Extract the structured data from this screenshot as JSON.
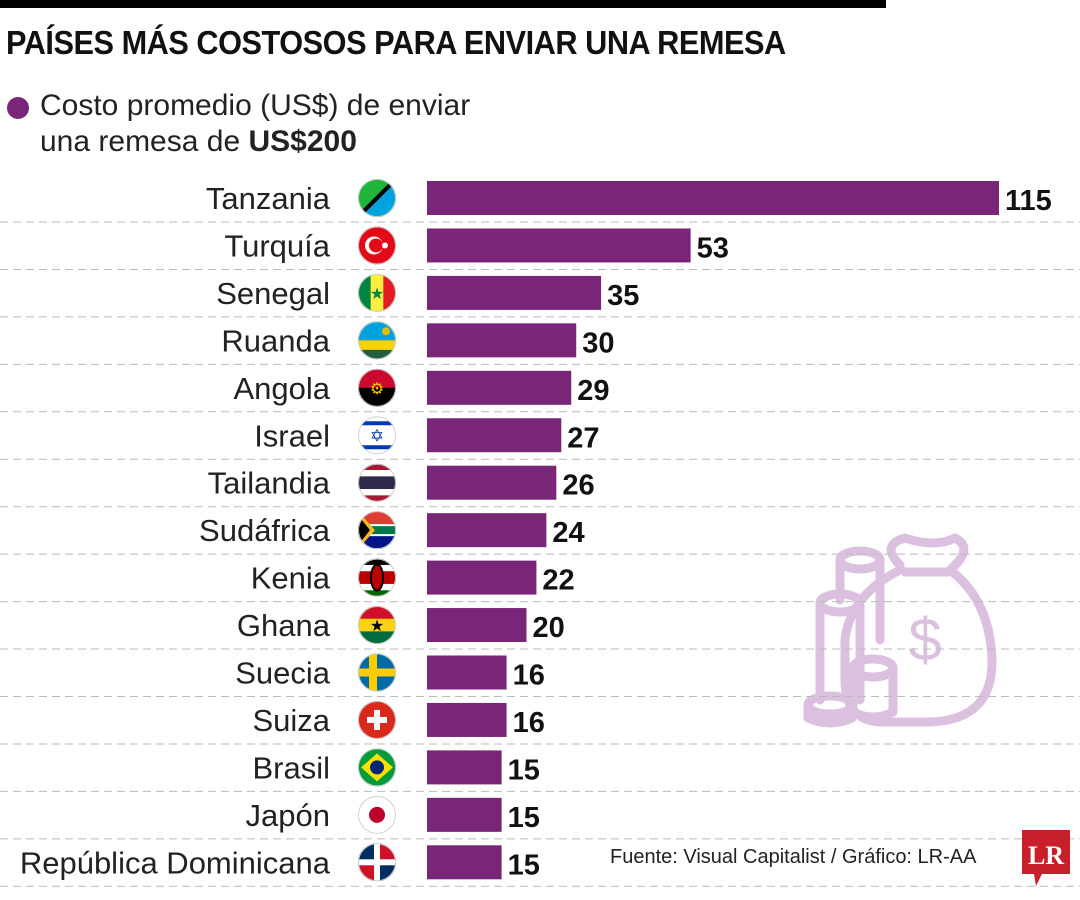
{
  "title": "PAÍSES MÁS COSTOSOS PARA ENVIAR UNA REMESA",
  "legend": {
    "text_line1": "Costo promedio (US$) de enviar",
    "text_line2_prefix": "una remesa de ",
    "text_line2_bold": "US$200",
    "color": "#7a2678"
  },
  "source": "Fuente: Visual Capitalist / Gráfico: LR-AA",
  "logo_text": "LR",
  "colors": {
    "bar": "#7a2678",
    "grid": "#bbbbbb",
    "icon": "#dcc0e0",
    "logo": "#c8202a"
  },
  "decorative_icon": "money-bag-coins-icon",
  "chart_data": {
    "type": "bar",
    "orientation": "horizontal",
    "categories": [
      "Tanzania",
      "Turquía",
      "Senegal",
      "Ruanda",
      "Angola",
      "Israel",
      "Tailandia",
      "Sudáfrica",
      "Kenia",
      "Ghana",
      "Suecia",
      "Suiza",
      "Brasil",
      "Japón",
      "República Dominicana"
    ],
    "flags": [
      "tanzania",
      "turkey",
      "senegal",
      "rwanda",
      "angola",
      "israel",
      "thailand",
      "south-africa",
      "kenya",
      "ghana",
      "sweden",
      "switzerland",
      "brazil",
      "japan",
      "dominican-republic"
    ],
    "values": [
      115,
      53,
      35,
      30,
      29,
      27,
      26,
      24,
      22,
      20,
      16,
      16,
      15,
      15,
      15
    ],
    "xlim": [
      0,
      115
    ],
    "grid": "dashed row separators",
    "data_labels": true
  }
}
